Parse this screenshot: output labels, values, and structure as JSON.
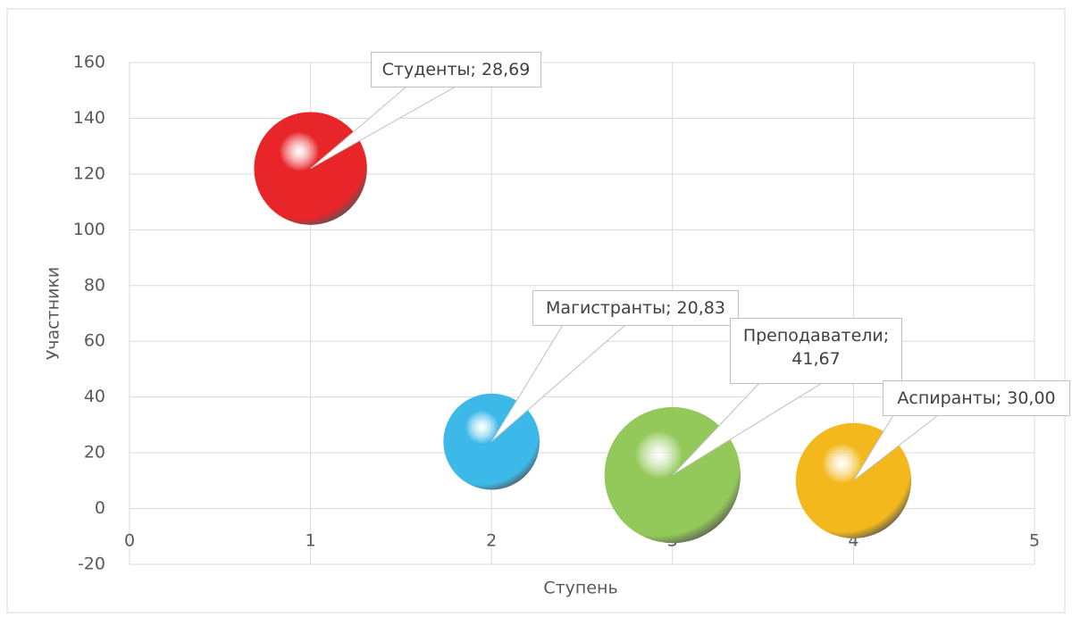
{
  "chart_data": {
    "type": "bubble",
    "x_label": "Ступень",
    "y_label": "Участники",
    "x": [
      1,
      2,
      3,
      4
    ],
    "values": [
      122,
      24,
      12,
      10
    ],
    "sizes": [
      28.69,
      20.83,
      41.67,
      30.0
    ],
    "value_labels": [
      "Студенты; 28,69",
      "Магистранты; 20,83",
      "Преподаватели; 41,67",
      "Аспиранты; 30,00"
    ],
    "colors": [
      "#e8262a",
      "#3cb9e9",
      "#93c95a",
      "#f2b81c"
    ],
    "xlim": [
      0,
      5
    ],
    "xticks": [
      0,
      1,
      2,
      3,
      4,
      5
    ],
    "ylim": [
      -20,
      160
    ],
    "yticks": [
      -20,
      0,
      20,
      40,
      60,
      80,
      100,
      120,
      140,
      160
    ],
    "grid": true
  }
}
